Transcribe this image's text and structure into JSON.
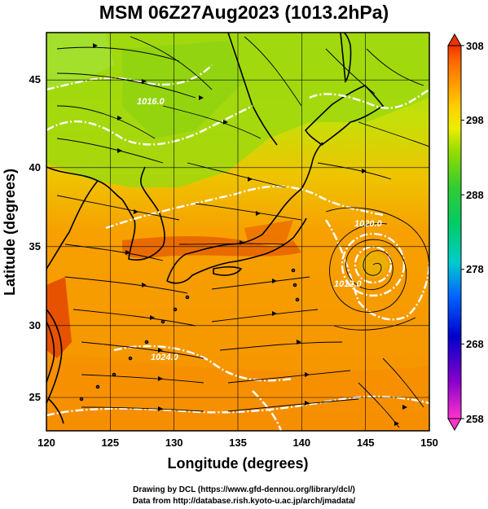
{
  "title": "MSM 06Z27Aug2023 (1013.2hPa)",
  "map": {
    "xlabel": "Longitude (degrees)",
    "ylabel": "Latitude  (degrees)",
    "lon_ticks": [
      "120",
      "125",
      "130",
      "135",
      "140",
      "145",
      "150"
    ],
    "lat_ticks": [
      "25",
      "30",
      "35",
      "40",
      "45"
    ],
    "lon_range": [
      120,
      150
    ],
    "lat_range": [
      22.4,
      47.6
    ],
    "grid": true,
    "contour_labels": [
      "1020.0",
      "1016.0",
      "1012.0",
      "1024.0"
    ]
  },
  "colorbar": {
    "ticks": [
      "308",
      "298",
      "288",
      "278",
      "268",
      "258"
    ],
    "range": [
      258,
      308
    ],
    "colors": [
      "#ff33cc",
      "#8800cc",
      "#0000cc",
      "#0066ff",
      "#00cccc",
      "#00cc66",
      "#33cc33",
      "#99dd00",
      "#eeee00",
      "#ffcc00",
      "#ff9900",
      "#ff6600",
      "#ee3300"
    ]
  },
  "credits": {
    "line1": "Drawing by DCL (https://www.gfd-dennou.org/library/dcl/)",
    "line2": "Data from http://database.rish.kyoto-u.ac.jp/arch/jmadata/"
  }
}
